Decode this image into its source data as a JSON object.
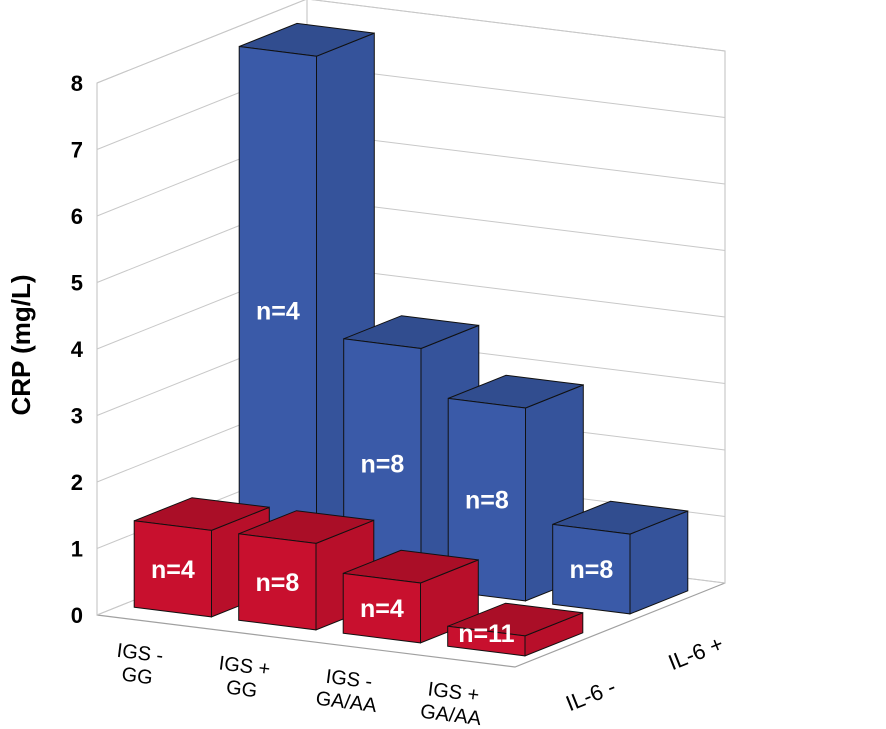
{
  "chart_data": {
    "type": "bar",
    "ylabel": "CRP (mg/L)",
    "ylim": [
      0,
      8
    ],
    "yticks": [
      "0",
      "1",
      "2",
      "3",
      "4",
      "5",
      "6",
      "7",
      "8"
    ],
    "categories": [
      [
        "IGS -",
        "GG"
      ],
      [
        "IGS +",
        "GG"
      ],
      [
        "IGS -",
        "GA/AA"
      ],
      [
        "IGS +",
        "GA/AA"
      ]
    ],
    "series_labels": [
      "IL-6 -",
      "IL-6 +"
    ],
    "series": [
      {
        "values": [
          1.3,
          1.3,
          0.9,
          0.3
        ],
        "labels": [
          "n=4",
          "n=8",
          "n=4",
          "n=11"
        ],
        "color": "#c8102e"
      },
      {
        "values": [
          7.8,
          3.6,
          2.9,
          1.2
        ],
        "labels": [
          "n=4",
          "n=8",
          "n=8",
          "n=8"
        ],
        "color": "#3a5aa8"
      }
    ],
    "grid": true
  }
}
